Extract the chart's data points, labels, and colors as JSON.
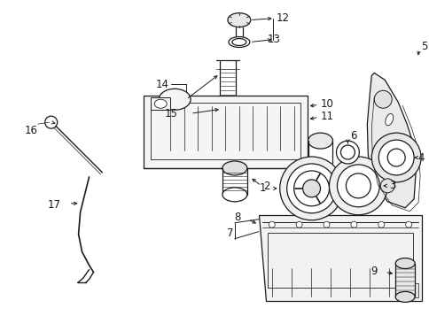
{
  "background_color": "#ffffff",
  "line_color": "#1a1a1a",
  "fig_width": 4.85,
  "fig_height": 3.57,
  "dpi": 100,
  "font_size": 8.5
}
